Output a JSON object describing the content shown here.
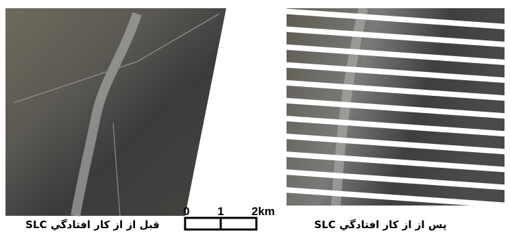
{
  "left_caption": "قبل از از کار افتادگي SLC",
  "right_caption": "پس از از کار افتادگي SLC",
  "scale_bar": {
    "labels": [
      "0",
      "1",
      "2km"
    ]
  }
}
